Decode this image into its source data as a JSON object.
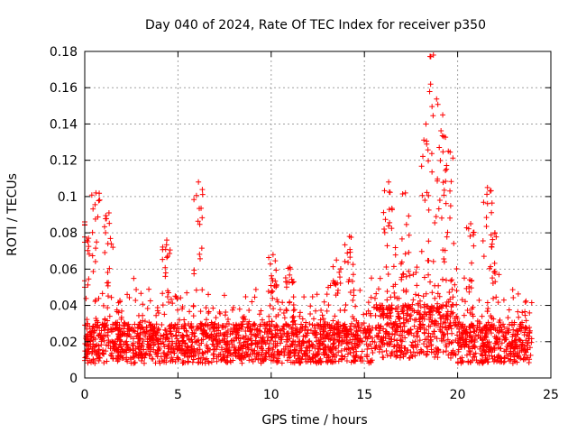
{
  "chart_data": {
    "type": "scatter",
    "title": "Day 040 of 2024, Rate Of TEC Index for receiver p350",
    "xlabel": "GPS time / hours",
    "ylabel": "ROTI / TECUs",
    "xlim": [
      0,
      25
    ],
    "ylim": [
      0,
      0.18
    ],
    "x_ticks": [
      "0",
      "5",
      "10",
      "15",
      "20",
      "25"
    ],
    "y_ticks": [
      "0",
      "0.02",
      "0.04",
      "0.06",
      "0.08",
      "0.1",
      "0.12",
      "0.14",
      "0.16",
      "0.18"
    ],
    "x_tick_values": [
      0,
      5,
      10,
      15,
      20,
      25
    ],
    "y_tick_values": [
      0,
      0.02,
      0.04,
      0.06,
      0.08,
      0.1,
      0.12,
      0.14,
      0.16,
      0.18
    ],
    "grid": true,
    "marker": "+",
    "color": "#ff0000",
    "x_data_range": [
      0,
      24
    ],
    "peaks": [
      {
        "x": 0.0,
        "y": 0.086
      },
      {
        "x": 0.6,
        "y": 0.102
      },
      {
        "x": 1.3,
        "y": 0.091
      },
      {
        "x": 4.4,
        "y": 0.076
      },
      {
        "x": 6.1,
        "y": 0.108
      },
      {
        "x": 10.1,
        "y": 0.068
      },
      {
        "x": 11.0,
        "y": 0.061
      },
      {
        "x": 13.5,
        "y": 0.065
      },
      {
        "x": 14.2,
        "y": 0.078
      },
      {
        "x": 16.3,
        "y": 0.108
      },
      {
        "x": 17.2,
        "y": 0.102
      },
      {
        "x": 18.3,
        "y": 0.14
      },
      {
        "x": 18.7,
        "y": 0.178
      },
      {
        "x": 19.2,
        "y": 0.145
      },
      {
        "x": 19.5,
        "y": 0.125
      },
      {
        "x": 20.7,
        "y": 0.085
      },
      {
        "x": 21.6,
        "y": 0.105
      },
      {
        "x": 22.0,
        "y": 0.08
      }
    ]
  }
}
